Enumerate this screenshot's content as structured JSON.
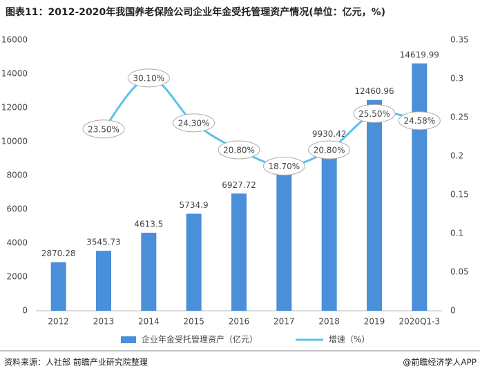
{
  "chart_data": {
    "type": "bar-line",
    "title": "图表11：2012-2020年我国养老保险公司企业年金受托管理资产情况(单位：亿元，%)",
    "categories": [
      "2012",
      "2013",
      "2014",
      "2015",
      "2016",
      "2017",
      "2018",
      "2019",
      "2020Q1-3"
    ],
    "series": [
      {
        "name": "企业年金受托管理资产（亿元）",
        "type": "bar",
        "color": "#4a8fd9",
        "values": [
          2870.28,
          3545.73,
          4613.5,
          5734.9,
          6927.72,
          8223.51,
          9930.42,
          12460.96,
          14619.99
        ]
      },
      {
        "name": "增速（%）",
        "type": "line",
        "axis": "y2",
        "color": "#5cc0ec",
        "values": [
          null,
          0.235,
          0.301,
          0.243,
          0.208,
          0.187,
          0.208,
          0.255,
          0.2458
        ],
        "value_labels": [
          null,
          "23.50%",
          "30.10%",
          "24.30%",
          "20.80%",
          "18.70%",
          "20.80%",
          "25.50%",
          "24.58%"
        ]
      }
    ],
    "ylim": [
      0,
      16000
    ],
    "yticks": [
      0,
      2000,
      4000,
      6000,
      8000,
      10000,
      12000,
      14000,
      16000
    ],
    "y2lim": [
      0,
      0.35
    ],
    "y2ticks": [
      0,
      0.05,
      0.1,
      0.15,
      0.2,
      0.25,
      0.3,
      0.35
    ],
    "grid": false,
    "legend": "bottom",
    "source": "资料来源：人社部 前瞻产业研究院整理",
    "credit": "@前瞻经济学人APP"
  }
}
